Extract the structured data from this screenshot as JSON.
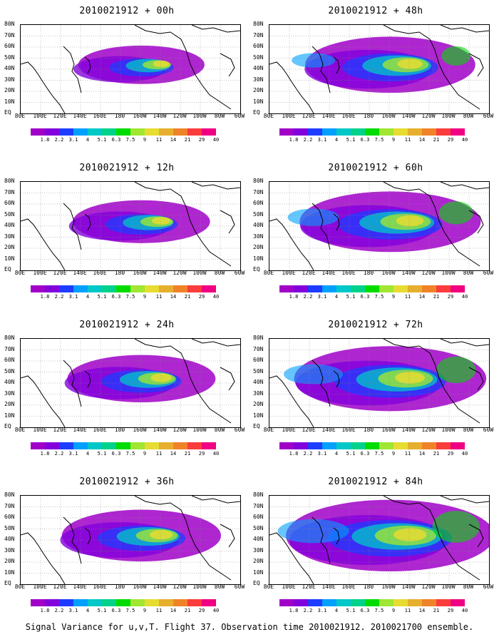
{
  "panels": [
    {
      "title": "2010021912 + 00h",
      "intensity": 0.15
    },
    {
      "title": "2010021912 + 48h",
      "intensity": 0.55
    },
    {
      "title": "2010021912 + 12h",
      "intensity": 0.25
    },
    {
      "title": "2010021912 + 60h",
      "intensity": 0.65
    },
    {
      "title": "2010021912 + 24h",
      "intensity": 0.35
    },
    {
      "title": "2010021912 + 72h",
      "intensity": 0.75
    },
    {
      "title": "2010021912 + 36h",
      "intensity": 0.45
    },
    {
      "title": "2010021912 + 84h",
      "intensity": 0.9
    }
  ],
  "lat_labels": [
    "80N",
    "70N",
    "60N",
    "50N",
    "40N",
    "30N",
    "20N",
    "10N",
    "EQ"
  ],
  "lon_labels": [
    "80E",
    "100E",
    "120E",
    "140E",
    "160E",
    "180",
    "160W",
    "140W",
    "120W",
    "100W",
    "80W",
    "60W"
  ],
  "colorbar": {
    "labels": [
      "1.8",
      "2.2",
      "3.1",
      "4",
      "5.1",
      "6.3",
      "7.5",
      "9",
      "11",
      "14",
      "21",
      "29",
      "40"
    ],
    "colors": [
      "#a000c8",
      "#8200dc",
      "#1e3cff",
      "#00a0ff",
      "#00c8c8",
      "#00d28c",
      "#00dc00",
      "#a0e632",
      "#e6dc32",
      "#e6af2d",
      "#f08228",
      "#fa3c3c",
      "#f00082"
    ]
  },
  "footer": "Signal Variance for u,v,T. Flight 37. Observation time 2010021912. 2010021700 ensemble."
}
